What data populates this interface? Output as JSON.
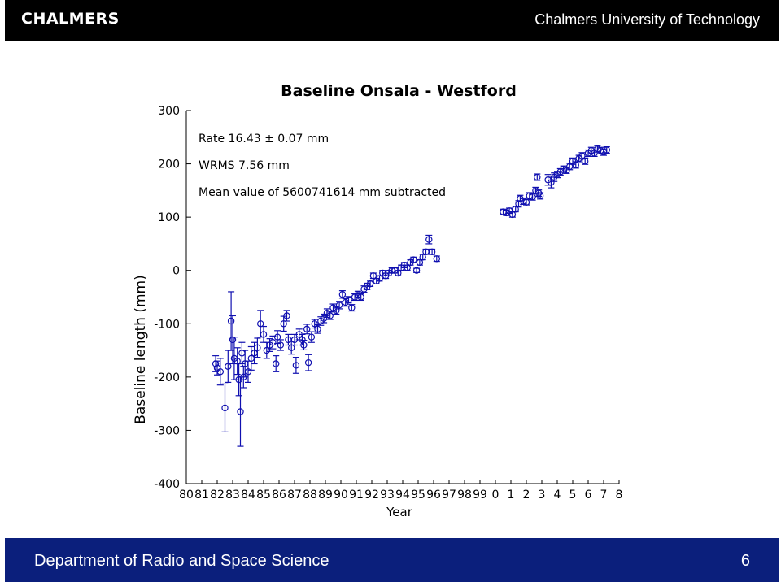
{
  "header": {
    "logo": "CHALMERS",
    "university": "Chalmers University of Technology"
  },
  "footer": {
    "department": "Department of Radio and Space Science",
    "page_number": "6"
  },
  "colors": {
    "header_bg": "#000000",
    "footer_bg": "#0b1f7c",
    "series": "#1010b0"
  },
  "chart_data": {
    "type": "scatter",
    "title": "Baseline Onsala - Westford",
    "xlabel": "Year",
    "ylabel": "Baseline length (mm)",
    "ylim": [
      -400,
      300
    ],
    "yticks": [
      300,
      200,
      100,
      0,
      -100,
      -200,
      -300,
      -400
    ],
    "xticks": [
      "80",
      "81",
      "82",
      "83",
      "84",
      "85",
      "86",
      "87",
      "88",
      "89",
      "90",
      "91",
      "92",
      "93",
      "94",
      "95",
      "96",
      "97",
      "98",
      "99",
      "0",
      "1",
      "2",
      "3",
      "4",
      "5",
      "6",
      "7",
      "8"
    ],
    "xlim": [
      1980,
      2008
    ],
    "annotations": [
      "Rate  16.43 ± 0.07 mm",
      "WRMS  7.56 mm",
      "Mean value of 5600741614 mm subtracted"
    ],
    "error_bars": true,
    "points": [
      [
        1981.9,
        -175,
        15
      ],
      [
        1982.0,
        -183,
        13
      ],
      [
        1982.2,
        -190,
        25
      ],
      [
        1982.5,
        -258,
        45
      ],
      [
        1982.7,
        -180,
        30
      ],
      [
        1982.9,
        -95,
        55
      ],
      [
        1983.0,
        -130,
        45
      ],
      [
        1983.1,
        -165,
        40
      ],
      [
        1983.3,
        -170,
        25
      ],
      [
        1983.4,
        -205,
        30
      ],
      [
        1983.5,
        -265,
        65
      ],
      [
        1983.6,
        -155,
        20
      ],
      [
        1983.7,
        -200,
        20
      ],
      [
        1983.8,
        -175,
        25
      ],
      [
        1984.0,
        -190,
        20
      ],
      [
        1984.2,
        -165,
        22
      ],
      [
        1984.4,
        -155,
        20
      ],
      [
        1984.6,
        -145,
        18
      ],
      [
        1984.8,
        -100,
        25
      ],
      [
        1985.0,
        -120,
        15
      ],
      [
        1985.2,
        -150,
        15
      ],
      [
        1985.4,
        -140,
        12
      ],
      [
        1985.6,
        -135,
        12
      ],
      [
        1985.8,
        -175,
        15
      ],
      [
        1985.9,
        -125,
        12
      ],
      [
        1986.1,
        -140,
        10
      ],
      [
        1986.3,
        -100,
        14
      ],
      [
        1986.5,
        -85,
        10
      ],
      [
        1986.6,
        -130,
        10
      ],
      [
        1986.8,
        -145,
        12
      ],
      [
        1987.0,
        -130,
        10
      ],
      [
        1987.1,
        -178,
        15
      ],
      [
        1987.3,
        -120,
        10
      ],
      [
        1987.5,
        -130,
        10
      ],
      [
        1987.6,
        -140,
        9
      ],
      [
        1987.8,
        -110,
        9
      ],
      [
        1987.9,
        -173,
        15
      ],
      [
        1988.1,
        -125,
        10
      ],
      [
        1988.3,
        -100,
        8
      ],
      [
        1988.5,
        -110,
        8
      ],
      [
        1988.7,
        -95,
        8
      ],
      [
        1988.9,
        -90,
        8
      ],
      [
        1989.1,
        -80,
        8
      ],
      [
        1989.3,
        -85,
        7
      ],
      [
        1989.5,
        -70,
        7
      ],
      [
        1989.7,
        -75,
        7
      ],
      [
        1989.9,
        -65,
        7
      ],
      [
        1990.1,
        -45,
        7
      ],
      [
        1990.3,
        -60,
        7
      ],
      [
        1990.5,
        -55,
        6
      ],
      [
        1990.7,
        -70,
        6
      ],
      [
        1990.9,
        -50,
        6
      ],
      [
        1991.1,
        -45,
        6
      ],
      [
        1991.3,
        -50,
        6
      ],
      [
        1991.5,
        -35,
        6
      ],
      [
        1991.7,
        -30,
        6
      ],
      [
        1991.9,
        -25,
        5
      ],
      [
        1992.1,
        -10,
        5
      ],
      [
        1992.3,
        -20,
        5
      ],
      [
        1992.5,
        -15,
        5
      ],
      [
        1992.7,
        -5,
        5
      ],
      [
        1992.9,
        -10,
        5
      ],
      [
        1993.1,
        -5,
        5
      ],
      [
        1993.3,
        0,
        5
      ],
      [
        1993.5,
        0,
        5
      ],
      [
        1993.7,
        -5,
        5
      ],
      [
        1993.9,
        5,
        5
      ],
      [
        1994.1,
        10,
        5
      ],
      [
        1994.3,
        5,
        5
      ],
      [
        1994.5,
        15,
        5
      ],
      [
        1994.7,
        20,
        5
      ],
      [
        1994.9,
        0,
        4
      ],
      [
        1995.1,
        15,
        5
      ],
      [
        1995.3,
        25,
        5
      ],
      [
        1995.5,
        35,
        5
      ],
      [
        1995.7,
        58,
        8
      ],
      [
        1995.9,
        35,
        5
      ],
      [
        1996.2,
        22,
        5
      ],
      [
        2000.5,
        110,
        5
      ],
      [
        2000.7,
        108,
        5
      ],
      [
        2000.9,
        112,
        5
      ],
      [
        2001.1,
        105,
        5
      ],
      [
        2001.3,
        115,
        5
      ],
      [
        2001.5,
        125,
        6
      ],
      [
        2001.6,
        135,
        6
      ],
      [
        2001.8,
        130,
        6
      ],
      [
        2002.0,
        128,
        5
      ],
      [
        2002.2,
        140,
        6
      ],
      [
        2002.4,
        138,
        6
      ],
      [
        2002.6,
        150,
        6
      ],
      [
        2002.7,
        175,
        6
      ],
      [
        2002.8,
        145,
        6
      ],
      [
        2002.9,
        140,
        6
      ],
      [
        2003.4,
        170,
        10
      ],
      [
        2003.6,
        165,
        10
      ],
      [
        2003.8,
        175,
        8
      ],
      [
        2004.0,
        180,
        6
      ],
      [
        2004.2,
        185,
        6
      ],
      [
        2004.4,
        190,
        6
      ],
      [
        2004.6,
        188,
        6
      ],
      [
        2004.8,
        195,
        6
      ],
      [
        2005.0,
        205,
        6
      ],
      [
        2005.2,
        198,
        6
      ],
      [
        2005.4,
        210,
        6
      ],
      [
        2005.6,
        215,
        6
      ],
      [
        2005.8,
        205,
        6
      ],
      [
        2006.0,
        220,
        6
      ],
      [
        2006.2,
        225,
        6
      ],
      [
        2006.4,
        220,
        6
      ],
      [
        2006.6,
        228,
        6
      ],
      [
        2006.8,
        225,
        6
      ],
      [
        2007.0,
        222,
        6
      ],
      [
        2007.2,
        226,
        6
      ]
    ]
  }
}
